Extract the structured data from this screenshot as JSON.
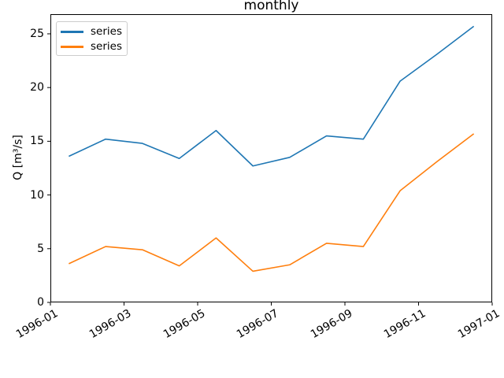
{
  "figure": {
    "title": "monthly",
    "ylabel": "Q [m³/s]"
  },
  "legend": {
    "position": "upper left",
    "entries": [
      {
        "label": "series",
        "color": "#1f77b4"
      },
      {
        "label": "series",
        "color": "#ff7f0e"
      }
    ]
  },
  "chart_data": {
    "type": "line",
    "title": "monthly",
    "xlabel": "",
    "ylabel": "Q [m³/s]",
    "x_months": [
      "1996-01",
      "1996-02",
      "1996-03",
      "1996-04",
      "1996-05",
      "1996-06",
      "1996-07",
      "1996-08",
      "1996-09",
      "1996-10",
      "1996-11",
      "1996-12"
    ],
    "points_at": "month centers",
    "series": [
      {
        "name": "series",
        "color": "#1f77b4",
        "values": [
          13.6,
          15.2,
          14.8,
          13.4,
          16.0,
          12.7,
          13.5,
          15.5,
          15.2,
          20.6,
          23.1,
          25.7
        ]
      },
      {
        "name": "series",
        "color": "#ff7f0e",
        "values": [
          3.6,
          5.2,
          4.9,
          3.4,
          6.0,
          2.9,
          3.5,
          5.5,
          5.2,
          10.4,
          13.1,
          15.7
        ]
      }
    ],
    "xticklabels": [
      "1996-01",
      "1996-03",
      "1996-05",
      "1996-07",
      "1996-09",
      "1996-11",
      "1997-01"
    ],
    "xtick_rotation_deg": 30,
    "yticks": [
      0,
      5,
      10,
      15,
      20,
      25
    ],
    "ylim": [
      0,
      26.83
    ],
    "grid": false,
    "legend_position": "upper left"
  }
}
